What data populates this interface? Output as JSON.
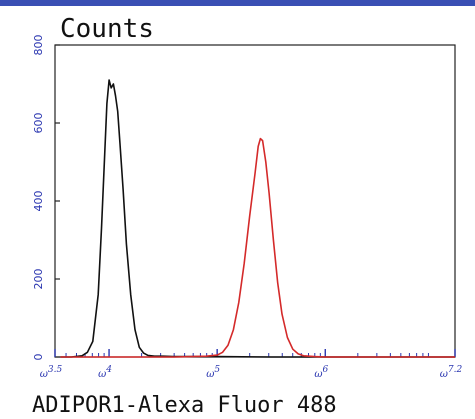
{
  "chart_data": {
    "type": "line",
    "title": "Counts",
    "xlabel": "ADIPOR1-Alexa Fluor 488",
    "ylabel": "",
    "x_scale": "log",
    "xlim": [
      3.5,
      7.2
    ],
    "ylim": [
      0,
      800
    ],
    "y_ticks": [
      {
        "value": 0,
        "label": "0"
      },
      {
        "value": 200,
        "label": "200"
      },
      {
        "value": 400,
        "label": "400"
      },
      {
        "value": 600,
        "label": "600"
      },
      {
        "value": 800,
        "label": "800"
      }
    ],
    "x_ticks": [
      {
        "value": 3.5,
        "base": "ω",
        "exp": "3.5"
      },
      {
        "value": 4,
        "base": "ω",
        "exp": "4"
      },
      {
        "value": 5,
        "base": "ω",
        "exp": "5"
      },
      {
        "value": 6,
        "base": "ω",
        "exp": "6"
      },
      {
        "value": 7.2,
        "base": "ω",
        "exp": "7.2"
      }
    ],
    "grid": false,
    "legend": "none",
    "series": [
      {
        "color": "#111111",
        "x": [
          3.55,
          3.65,
          3.75,
          3.8,
          3.85,
          3.9,
          3.93,
          3.96,
          3.98,
          4.0,
          4.02,
          4.04,
          4.06,
          4.08,
          4.1,
          4.13,
          4.16,
          4.2,
          4.24,
          4.28,
          4.32,
          4.36,
          4.42,
          4.5,
          4.6,
          4.8,
          5.0,
          5.5,
          6.0,
          7.2
        ],
        "y": [
          0,
          0,
          3,
          12,
          40,
          160,
          330,
          520,
          650,
          710,
          690,
          700,
          670,
          630,
          550,
          430,
          290,
          160,
          70,
          25,
          10,
          4,
          2,
          2,
          1,
          1,
          1,
          0,
          0,
          0
        ]
      },
      {
        "color": "#d42a2a",
        "x": [
          3.55,
          4.0,
          4.6,
          4.9,
          5.0,
          5.05,
          5.1,
          5.15,
          5.2,
          5.25,
          5.3,
          5.35,
          5.38,
          5.4,
          5.42,
          5.45,
          5.48,
          5.52,
          5.56,
          5.6,
          5.65,
          5.7,
          5.75,
          5.8,
          5.9,
          6.0,
          6.5,
          7.2
        ],
        "y": [
          0,
          0,
          0,
          2,
          5,
          12,
          30,
          70,
          140,
          240,
          360,
          470,
          540,
          560,
          555,
          500,
          420,
          300,
          190,
          110,
          50,
          20,
          8,
          3,
          1,
          0,
          0,
          0
        ]
      }
    ]
  }
}
